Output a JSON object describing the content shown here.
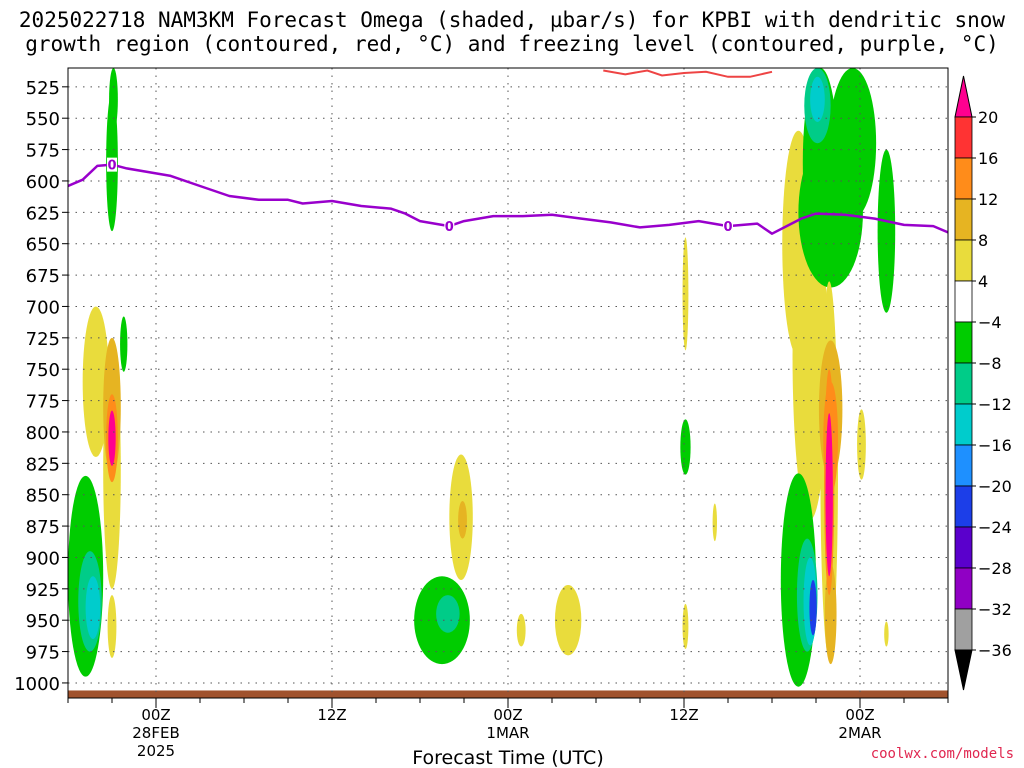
{
  "title_line1": "2025022718 NAM3KM Forecast Omega (shaded, µbar/s) for KPBI with dendritic snow",
  "title_line2": "growth region (contoured, red, °C) and freezing level (contoured, purple, °C)",
  "credit": "coolwx.com/models",
  "colors": {
    "freezing_line": "#9900cc",
    "dgz_line": "#ee4444",
    "terrain": "#a0522d",
    "grid": "#555555"
  },
  "chart_data": {
    "type": "heatmap",
    "title": "2025022718 NAM3KM Forecast Omega (shaded, µbar/s) for KPBI with dendritic snow growth region (contoured, red, °C) and freezing level (contoured, purple, °C)",
    "xlabel": "Forecast Time (UTC)",
    "ylabel": "",
    "x_start": "2025-02-27 18Z",
    "x_end": "2025-03-02 12Z",
    "x_ticks": [
      {
        "hour": 6,
        "l1": "00Z",
        "l2": "28FEB",
        "l3": "2025"
      },
      {
        "hour": 18,
        "l1": "12Z",
        "l2": "",
        "l3": ""
      },
      {
        "hour": 30,
        "l1": "00Z",
        "l2": "1MAR",
        "l3": ""
      },
      {
        "hour": 42,
        "l1": "12Z",
        "l2": "",
        "l3": ""
      },
      {
        "hour": 54,
        "l1": "00Z",
        "l2": "2MAR",
        "l3": ""
      }
    ],
    "x_minor_hours": [
      0,
      3,
      6,
      9,
      12,
      15,
      18,
      21,
      24,
      27,
      30,
      33,
      36,
      39,
      42,
      45,
      48,
      51,
      54,
      57,
      60
    ],
    "y_levels": [
      525,
      550,
      575,
      600,
      625,
      650,
      675,
      700,
      725,
      750,
      775,
      800,
      825,
      850,
      875,
      900,
      925,
      950,
      975,
      1000
    ],
    "y_range_mb": [
      510,
      1012
    ],
    "omega_scale": {
      "boundaries": [
        -36,
        -32,
        -28,
        -24,
        -20,
        -16,
        -12,
        -8,
        -4,
        4,
        8,
        12,
        16,
        20
      ],
      "labels": [
        "20",
        "16",
        "12",
        "8",
        "4",
        "−4",
        "−8",
        "−12",
        "−16",
        "−20",
        "−24",
        "−28",
        "−32",
        "−36"
      ],
      "colors": [
        "#ff0090",
        "#ff3333",
        "#ff8c1a",
        "#e6b422",
        "#e9dc3c",
        "#ffffff",
        "#00cc00",
        "#00cc88",
        "#00cccc",
        "#1e90ff",
        "#1c3ee8",
        "#5a00cc",
        "#9000c4",
        "#a0a0a0",
        "#000000"
      ]
    },
    "freezing_level_0C": [
      {
        "hour": 0,
        "p": 604
      },
      {
        "hour": 1,
        "p": 599
      },
      {
        "hour": 2,
        "p": 588
      },
      {
        "hour": 3,
        "p": 587
      },
      {
        "hour": 4,
        "p": 590
      },
      {
        "hour": 6,
        "p": 594
      },
      {
        "hour": 7,
        "p": 596
      },
      {
        "hour": 9,
        "p": 604
      },
      {
        "hour": 11,
        "p": 612
      },
      {
        "hour": 13,
        "p": 615
      },
      {
        "hour": 15,
        "p": 615
      },
      {
        "hour": 16,
        "p": 618
      },
      {
        "hour": 18,
        "p": 616
      },
      {
        "hour": 20,
        "p": 620
      },
      {
        "hour": 22,
        "p": 622
      },
      {
        "hour": 23,
        "p": 626
      },
      {
        "hour": 24,
        "p": 632
      },
      {
        "hour": 26,
        "p": 636
      },
      {
        "hour": 27,
        "p": 632
      },
      {
        "hour": 29,
        "p": 628
      },
      {
        "hour": 31,
        "p": 628
      },
      {
        "hour": 33,
        "p": 627
      },
      {
        "hour": 35,
        "p": 630
      },
      {
        "hour": 37,
        "p": 633
      },
      {
        "hour": 39,
        "p": 637
      },
      {
        "hour": 41,
        "p": 635
      },
      {
        "hour": 43,
        "p": 632
      },
      {
        "hour": 45,
        "p": 636
      },
      {
        "hour": 47,
        "p": 634
      },
      {
        "hour": 48,
        "p": 642
      },
      {
        "hour": 49,
        "p": 636
      },
      {
        "hour": 50,
        "p": 630
      },
      {
        "hour": 51,
        "p": 626
      },
      {
        "hour": 53,
        "p": 627
      },
      {
        "hour": 55,
        "p": 630
      },
      {
        "hour": 57,
        "p": 635
      },
      {
        "hour": 59,
        "p": 636
      },
      {
        "hour": 60,
        "p": 641
      }
    ],
    "freezing_label_hours": [
      3,
      26,
      45
    ],
    "dgz_contour": [
      {
        "hour": 36.5,
        "p": 512
      },
      {
        "hour": 38.0,
        "p": 515
      },
      {
        "hour": 39.5,
        "p": 512
      },
      {
        "hour": 40.5,
        "p": 516
      },
      {
        "hour": 42.0,
        "p": 514
      },
      {
        "hour": 43.5,
        "p": 513
      },
      {
        "hour": 45.0,
        "p": 517
      },
      {
        "hour": 46.5,
        "p": 517
      },
      {
        "hour": 48.0,
        "p": 513
      }
    ],
    "terrain_p": 1006,
    "omega_features": [
      {
        "hour": 3.0,
        "p": 585,
        "dh": 0.4,
        "dp": 55,
        "omega": -6
      },
      {
        "hour": 3.1,
        "p": 535,
        "dh": 0.3,
        "dp": 25,
        "omega": -6
      },
      {
        "hour": 1.9,
        "p": 760,
        "dh": 0.9,
        "dp": 60,
        "omega": 6
      },
      {
        "hour": 3.0,
        "p": 780,
        "dh": 0.6,
        "dp": 55,
        "omega": 8
      },
      {
        "hour": 3.0,
        "p": 830,
        "dh": 0.6,
        "dp": 95,
        "omega": 6
      },
      {
        "hour": 3.0,
        "p": 805,
        "dh": 0.4,
        "dp": 35,
        "omega": 13
      },
      {
        "hour": 3.0,
        "p": 805,
        "dh": 0.25,
        "dp": 22,
        "omega": 20
      },
      {
        "hour": 3.8,
        "p": 730,
        "dh": 0.25,
        "dp": 22,
        "omega": -6
      },
      {
        "hour": 1.2,
        "p": 915,
        "dh": 1.2,
        "dp": 80,
        "omega": -6
      },
      {
        "hour": 1.5,
        "p": 935,
        "dh": 0.8,
        "dp": 40,
        "omega": -10
      },
      {
        "hour": 1.7,
        "p": 940,
        "dh": 0.5,
        "dp": 25,
        "omega": -15
      },
      {
        "hour": 3.0,
        "p": 955,
        "dh": 0.3,
        "dp": 25,
        "omega": 6
      },
      {
        "hour": 26.8,
        "p": 868,
        "dh": 0.8,
        "dp": 50,
        "omega": 6
      },
      {
        "hour": 26.9,
        "p": 870,
        "dh": 0.3,
        "dp": 15,
        "omega": 9
      },
      {
        "hour": 25.5,
        "p": 950,
        "dh": 1.9,
        "dp": 35,
        "omega": -6
      },
      {
        "hour": 25.9,
        "p": 945,
        "dh": 0.8,
        "dp": 15,
        "omega": -12
      },
      {
        "hour": 30.9,
        "p": 958,
        "dh": 0.3,
        "dp": 13,
        "omega": 6
      },
      {
        "hour": 34.1,
        "p": 950,
        "dh": 0.9,
        "dp": 28,
        "omega": 6
      },
      {
        "hour": 42.1,
        "p": 690,
        "dh": 0.2,
        "dp": 45,
        "omega": 6
      },
      {
        "hour": 42.1,
        "p": 812,
        "dh": 0.35,
        "dp": 22,
        "omega": -6
      },
      {
        "hour": 44.1,
        "p": 872,
        "dh": 0.15,
        "dp": 15,
        "omega": 6
      },
      {
        "hour": 42.1,
        "p": 955,
        "dh": 0.2,
        "dp": 18,
        "omega": 6
      },
      {
        "hour": 49.8,
        "p": 650,
        "dh": 1.1,
        "dp": 90,
        "omega": 6
      },
      {
        "hour": 50.6,
        "p": 740,
        "dh": 1.2,
        "dp": 130,
        "omega": 6
      },
      {
        "hour": 51.3,
        "p": 585,
        "dh": 1.2,
        "dp": 75,
        "omega": -6
      },
      {
        "hour": 52.0,
        "p": 625,
        "dh": 2.2,
        "dp": 60,
        "omega": -6
      },
      {
        "hour": 53.5,
        "p": 570,
        "dh": 1.6,
        "dp": 60,
        "omega": -6
      },
      {
        "hour": 55.8,
        "p": 640,
        "dh": 0.6,
        "dp": 65,
        "omega": -6
      },
      {
        "hour": 51.1,
        "p": 540,
        "dh": 0.9,
        "dp": 30,
        "omega": -10
      },
      {
        "hour": 51.1,
        "p": 535,
        "dh": 0.5,
        "dp": 18,
        "omega": -15
      },
      {
        "hour": 52.0,
        "p": 782,
        "dh": 0.8,
        "dp": 55,
        "omega": 8
      },
      {
        "hour": 52.0,
        "p": 805,
        "dh": 0.5,
        "dp": 45,
        "omega": 12
      },
      {
        "hour": 51.9,
        "p": 830,
        "dh": 0.6,
        "dp": 150,
        "omega": 6
      },
      {
        "hour": 51.9,
        "p": 840,
        "dh": 0.35,
        "dp": 90,
        "omega": 14
      },
      {
        "hour": 51.9,
        "p": 850,
        "dh": 0.25,
        "dp": 65,
        "omega": 20
      },
      {
        "hour": 52.0,
        "p": 945,
        "dh": 0.4,
        "dp": 40,
        "omega": 10
      },
      {
        "hour": 54.1,
        "p": 810,
        "dh": 0.3,
        "dp": 28,
        "omega": 6
      },
      {
        "hour": 49.8,
        "p": 918,
        "dh": 1.2,
        "dp": 85,
        "omega": -6
      },
      {
        "hour": 50.4,
        "p": 930,
        "dh": 0.7,
        "dp": 45,
        "omega": -10
      },
      {
        "hour": 50.6,
        "p": 935,
        "dh": 0.45,
        "dp": 35,
        "omega": -15
      },
      {
        "hour": 50.8,
        "p": 940,
        "dh": 0.25,
        "dp": 22,
        "omega": -22
      },
      {
        "hour": 55.8,
        "p": 961,
        "dh": 0.15,
        "dp": 10,
        "omega": 6
      }
    ]
  }
}
